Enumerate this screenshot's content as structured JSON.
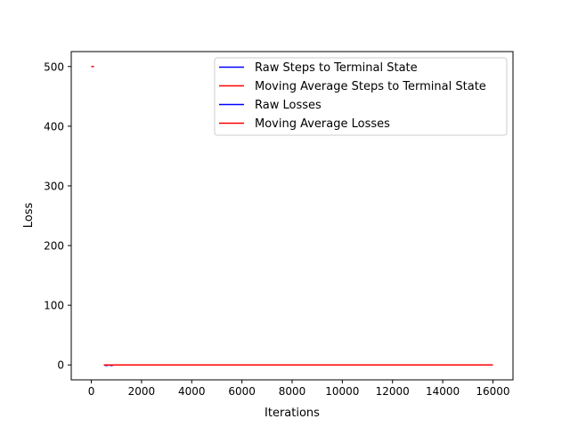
{
  "chart_data": {
    "type": "line",
    "title": "",
    "xlabel": "Iterations",
    "ylabel": "Loss",
    "xlim": [
      -800,
      16800
    ],
    "ylim": [
      -25,
      525
    ],
    "xticks": [
      0,
      2000,
      4000,
      6000,
      8000,
      10000,
      12000,
      14000,
      16000
    ],
    "yticks": [
      0,
      100,
      200,
      300,
      400,
      500
    ],
    "grid": false,
    "legend_position": "top-right",
    "series": [
      {
        "name": "Raw Steps to Terminal State",
        "color": "#0000ff",
        "x": [
          0,
          100
        ],
        "y": [
          500,
          500
        ]
      },
      {
        "name": "Moving Average Steps to Terminal State",
        "color": "#ff0000",
        "x": [
          0,
          100
        ],
        "y": [
          500,
          500
        ]
      },
      {
        "name": "Raw Losses",
        "color": "#0000ff",
        "x": [
          500,
          600,
          700,
          800,
          900,
          1000,
          2000,
          4000,
          6000,
          8000,
          10000,
          12000,
          14000,
          16000
        ],
        "y": [
          0,
          -1,
          0,
          -1,
          0,
          0,
          0,
          0,
          0,
          0,
          0,
          0,
          0,
          0
        ]
      },
      {
        "name": "Moving Average Losses",
        "color": "#ff0000",
        "x": [
          500,
          1000,
          2000,
          4000,
          6000,
          8000,
          10000,
          12000,
          14000,
          16000
        ],
        "y": [
          0,
          0,
          0,
          0,
          0,
          0,
          0,
          0,
          0,
          0
        ]
      }
    ]
  }
}
